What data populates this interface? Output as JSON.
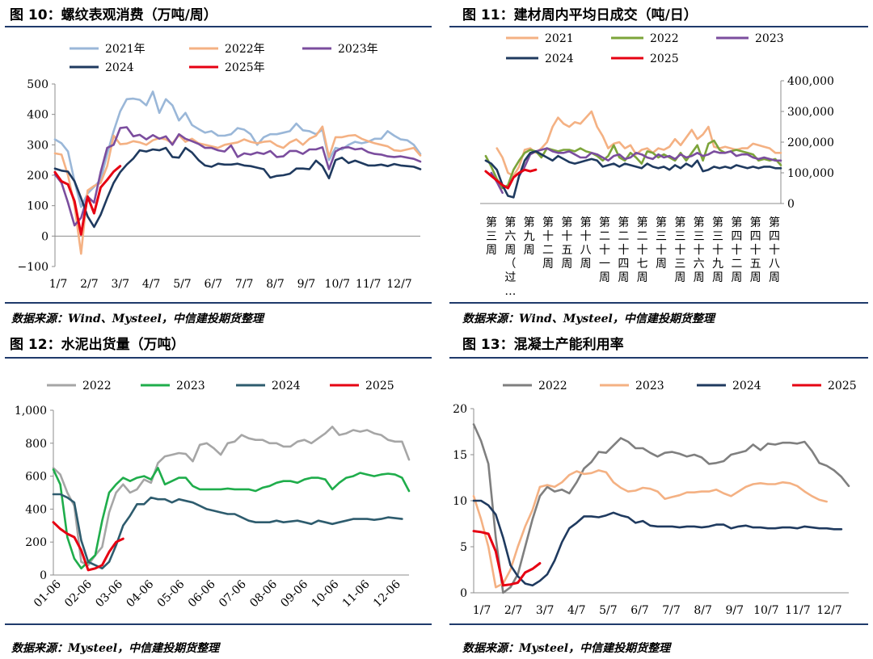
{
  "panels": {
    "p10": {
      "title": "图 10：螺纹表观消费（万吨/周）",
      "source": "数据来源：Wind、Mysteel，中信建投期货整理"
    },
    "p11": {
      "title": "图 11：建材周内平均日成交（吨/日）",
      "source": "数据来源：Wind、Mysteel，中信建投期货整理"
    },
    "p12": {
      "title": "图 12：水泥出货量（万吨）",
      "source": "数据来源：Mysteel，中信建投期货整理"
    },
    "p13": {
      "title": "图 13：混凝土产能利用率",
      "source": "数据来源：Mysteel，中信建投期货整理"
    }
  },
  "chart_data": [
    {
      "id": "p10",
      "type": "line",
      "title": "图 10：螺纹表观消费（万吨/周）",
      "xlabel": "",
      "ylabel": "",
      "x_ticks": [
        "1/7",
        "2/7",
        "3/7",
        "4/7",
        "5/7",
        "6/7",
        "7/7",
        "8/7",
        "9/7",
        "10/7",
        "11/7",
        "12/7"
      ],
      "ylim": [
        -100,
        500
      ],
      "y_ticks": [
        "−100",
        "0",
        "100",
        "200",
        "300",
        "400",
        "500"
      ],
      "y_tick_values": [
        -100,
        0,
        100,
        200,
        300,
        400,
        500
      ],
      "grid": false,
      "legend": "top",
      "series": [
        {
          "name": "2021年",
          "color": "#9ab7d8",
          "values": [
            318,
            305,
            278,
            180,
            96,
            140,
            162,
            185,
            270,
            345,
            410,
            450,
            452,
            448,
            430,
            475,
            405,
            450,
            430,
            380,
            405,
            365,
            352,
            340,
            345,
            330,
            330,
            335,
            355,
            350,
            335,
            300,
            325,
            335,
            335,
            340,
            345,
            370,
            348,
            345,
            335,
            350,
            250,
            290,
            285,
            300,
            310,
            305,
            310,
            320,
            320,
            345,
            330,
            318,
            315,
            300,
            270
          ]
        },
        {
          "name": "2022年",
          "color": "#f4b183",
          "values": [
            272,
            268,
            200,
            100,
            -58,
            150,
            165,
            175,
            230,
            330,
            302,
            304,
            312,
            308,
            300,
            315,
            322,
            318,
            305,
            332,
            310,
            320,
            305,
            300,
            295,
            290,
            300,
            304,
            308,
            318,
            310,
            305,
            310,
            312,
            298,
            290,
            308,
            318,
            300,
            320,
            330,
            360,
            260,
            325,
            325,
            330,
            332,
            320,
            312,
            305,
            300,
            295,
            282,
            280,
            285,
            290,
            265
          ]
        },
        {
          "name": "2023年",
          "color": "#7b4d9e",
          "values": [
            203,
            175,
            110,
            35,
            60,
            130,
            110,
            210,
            290,
            300,
            355,
            358,
            328,
            333,
            318,
            332,
            320,
            328,
            300,
            335,
            320,
            312,
            303,
            290,
            290,
            282,
            278,
            298,
            260,
            272,
            268,
            275,
            270,
            280,
            260,
            262,
            280,
            280,
            270,
            285,
            285,
            292,
            220,
            278,
            290,
            292,
            285,
            288,
            276,
            270,
            268,
            262,
            260,
            262,
            258,
            254,
            245
          ]
        },
        {
          "name": "2024",
          "color": "#1f3a5f",
          "values": [
            222,
            215,
            212,
            180,
            125,
            65,
            30,
            70,
            125,
            175,
            210,
            235,
            255,
            282,
            278,
            285,
            282,
            290,
            260,
            258,
            290,
            275,
            250,
            232,
            228,
            238,
            235,
            235,
            238,
            232,
            230,
            225,
            220,
            192,
            198,
            200,
            205,
            222,
            222,
            220,
            248,
            230,
            190,
            250,
            258,
            240,
            248,
            240,
            232,
            232,
            235,
            230,
            237,
            232,
            230,
            228,
            220
          ]
        },
        {
          "name": "2025年",
          "color": "#e60012",
          "values": [
            210,
            180,
            170,
            115,
            5,
            130,
            75,
            160,
            185,
            212,
            230
          ]
        }
      ]
    },
    {
      "id": "p11",
      "type": "line",
      "title": "图 11：建材周内平均日成交（吨/日）",
      "xlabel": "",
      "ylabel": "",
      "x_ticks": [
        "第三周",
        "第六周（过…",
        "第九周",
        "第十二周",
        "第十五周",
        "第十八周",
        "第二十一周",
        "第二十四周",
        "第二十七周",
        "第三十周",
        "第三十三周",
        "第三十六周",
        "第三十九周",
        "第四十二周",
        "第四十五周",
        "第四十八周"
      ],
      "ylim": [
        0,
        400000
      ],
      "y_ticks": [
        "0",
        "100,000",
        "200,000",
        "300,000",
        "400,000"
      ],
      "y_tick_values": [
        0,
        100000,
        200000,
        300000,
        400000
      ],
      "grid": false,
      "legend": "top",
      "series": [
        {
          "name": "2021",
          "color": "#f4b183",
          "values": [
            null,
            null,
            null,
            180000,
            150000,
            100000,
            90000,
            120000,
            175000,
            180000,
            165000,
            180000,
            200000,
            250000,
            280000,
            260000,
            250000,
            265000,
            260000,
            280000,
            300000,
            250000,
            220000,
            180000,
            195000,
            200000,
            180000,
            190000,
            160000,
            175000,
            180000,
            165000,
            180000,
            175000,
            185000,
            210000,
            190000,
            215000,
            240000,
            210000,
            225000,
            250000,
            185000,
            180000,
            185000,
            180000,
            175000,
            180000,
            180000,
            195000,
            190000,
            185000,
            180000,
            165000,
            165000
          ]
        },
        {
          "name": "2022",
          "color": "#7ca43a",
          "values": [
            null,
            155000,
            120000,
            80000,
            50000,
            60000,
            110000,
            140000,
            165000,
            175000,
            170000,
            150000,
            180000,
            175000,
            170000,
            175000,
            175000,
            170000,
            180000,
            170000,
            165000,
            155000,
            140000,
            155000,
            190000,
            150000,
            140000,
            165000,
            150000,
            130000,
            170000,
            165000,
            150000,
            160000,
            150000,
            140000,
            165000,
            140000,
            165000,
            190000,
            140000,
            195000,
            205000,
            175000,
            165000,
            170000,
            175000,
            170000,
            165000,
            160000,
            140000,
            145000,
            140000,
            145000,
            125000
          ]
        },
        {
          "name": "2023",
          "color": "#7b4d9e",
          "values": [
            null,
            null,
            100000,
            70000,
            35000,
            null,
            null,
            90000,
            120000,
            160000,
            170000,
            175000,
            180000,
            170000,
            165000,
            165000,
            170000,
            160000,
            150000,
            150000,
            165000,
            160000,
            150000,
            140000,
            155000,
            160000,
            145000,
            150000,
            165000,
            160000,
            150000,
            145000,
            160000,
            150000,
            155000,
            145000,
            160000,
            150000,
            155000,
            165000,
            155000,
            160000,
            170000,
            165000,
            165000,
            170000,
            155000,
            160000,
            160000,
            150000,
            145000,
            150000,
            145000,
            140000,
            140000
          ]
        },
        {
          "name": "2024",
          "color": "#1f3a5f",
          "values": [
            null,
            140000,
            130000,
            110000,
            60000,
            25000,
            20000,
            90000,
            140000,
            165000,
            170000,
            160000,
            150000,
            140000,
            155000,
            145000,
            135000,
            130000,
            135000,
            140000,
            145000,
            140000,
            120000,
            125000,
            130000,
            120000,
            130000,
            125000,
            120000,
            115000,
            130000,
            120000,
            115000,
            120000,
            110000,
            125000,
            115000,
            130000,
            120000,
            140000,
            105000,
            110000,
            120000,
            115000,
            120000,
            115000,
            125000,
            120000,
            115000,
            120000,
            115000,
            120000,
            120000,
            115000,
            115000
          ]
        },
        {
          "name": "2025",
          "color": "#e60012",
          "values": [
            null,
            105000,
            90000,
            75000,
            60000,
            50000,
            85000,
            100000,
            110000,
            105000,
            110000
          ]
        }
      ]
    },
    {
      "id": "p12",
      "type": "line",
      "title": "图 12：水泥出货量（万吨）",
      "xlabel": "",
      "ylabel": "",
      "x_ticks": [
        "01-06",
        "02-06",
        "03-06",
        "04-06",
        "05-06",
        "06-06",
        "07-06",
        "08-06",
        "09-06",
        "10-06",
        "11-06",
        "12-06"
      ],
      "ylim": [
        0,
        1000
      ],
      "y_ticks": [
        "0",
        "200",
        "400",
        "600",
        "800",
        "1,000"
      ],
      "y_tick_values": [
        0,
        200,
        400,
        600,
        800,
        1000
      ],
      "grid": false,
      "legend": "top",
      "series": [
        {
          "name": "2022",
          "color": "#a6a6a6",
          "values": [
            650,
            610,
            500,
            420,
            80,
            60,
            120,
            170,
            380,
            500,
            550,
            500,
            520,
            580,
            560,
            680,
            720,
            730,
            740,
            735,
            690,
            790,
            800,
            770,
            730,
            800,
            810,
            850,
            830,
            820,
            820,
            800,
            800,
            780,
            780,
            810,
            820,
            800,
            830,
            860,
            900,
            850,
            860,
            880,
            870,
            880,
            860,
            850,
            820,
            810,
            810,
            700
          ]
        },
        {
          "name": "2023",
          "color": "#1fad4b",
          "values": [
            640,
            550,
            230,
            100,
            40,
            80,
            120,
            330,
            500,
            550,
            590,
            570,
            590,
            600,
            580,
            650,
            550,
            570,
            590,
            590,
            540,
            520,
            520,
            520,
            520,
            525,
            520,
            520,
            520,
            510,
            530,
            540,
            560,
            570,
            570,
            560,
            580,
            590,
            590,
            580,
            520,
            560,
            590,
            600,
            620,
            610,
            600,
            610,
            615,
            610,
            590,
            510
          ]
        },
        {
          "name": "2024",
          "color": "#2e5c6e",
          "values": [
            490,
            490,
            470,
            440,
            210,
            80,
            60,
            40,
            80,
            180,
            300,
            360,
            430,
            430,
            470,
            460,
            460,
            440,
            460,
            450,
            440,
            420,
            400,
            390,
            380,
            370,
            370,
            350,
            330,
            320,
            320,
            320,
            330,
            320,
            325,
            330,
            320,
            310,
            330,
            320,
            310,
            320,
            330,
            340,
            340,
            340,
            335,
            340,
            350,
            345,
            340
          ]
        },
        {
          "name": "2025",
          "color": "#e60012",
          "values": [
            320,
            280,
            250,
            230,
            150,
            30,
            40,
            60,
            140,
            200,
            220
          ]
        }
      ]
    },
    {
      "id": "p13",
      "type": "line",
      "title": "图 13：混凝土产能利用率",
      "xlabel": "",
      "ylabel": "",
      "x_ticks": [
        "1/7",
        "2/7",
        "3/7",
        "4/7",
        "5/7",
        "6/7",
        "7/7",
        "8/7",
        "9/7",
        "10/7",
        "11/7",
        "12/7"
      ],
      "ylim": [
        0,
        20
      ],
      "y_ticks": [
        "0",
        "5",
        "10",
        "15",
        "20"
      ],
      "y_tick_values": [
        0,
        5,
        10,
        15,
        20
      ],
      "grid": false,
      "legend": "top",
      "series": [
        {
          "name": "2022",
          "color": "#7f7f7f",
          "values": [
            18.3,
            16.5,
            14,
            6,
            0,
            0.6,
            2,
            5,
            8,
            10.5,
            11.5,
            11,
            11.2,
            10.8,
            12,
            13.5,
            14.2,
            15.3,
            15.2,
            16,
            16.8,
            16.4,
            15.7,
            15.7,
            15.2,
            14.8,
            15.2,
            15.3,
            15.1,
            14.8,
            15,
            14.7,
            14,
            14.1,
            14.3,
            15,
            15.2,
            15.4,
            16.1,
            15.5,
            16.2,
            16.1,
            16.3,
            16.3,
            16.2,
            16.4,
            15.4,
            14.1,
            13.8,
            13.3,
            12.6,
            11.6
          ]
        },
        {
          "name": "2023",
          "color": "#f4b183",
          "values": [
            10.5,
            8,
            5,
            0.6,
            1,
            2.5,
            5,
            7.2,
            9,
            11.5,
            11.7,
            11.5,
            12,
            12.8,
            13.2,
            12.9,
            13,
            13.3,
            13.1,
            12,
            11.4,
            11,
            11.1,
            11.4,
            11.3,
            11,
            10.2,
            10.4,
            10.6,
            10.9,
            10.9,
            11,
            11,
            11.2,
            10.8,
            10.5,
            11,
            11.5,
            11.8,
            11.9,
            11.8,
            11.8,
            12,
            11.9,
            11.6,
            11,
            10.5,
            10.1,
            9.9
          ]
        },
        {
          "name": "2024",
          "color": "#1f3a5f",
          "values": [
            10,
            10,
            9.5,
            8.5,
            6,
            3,
            1.8,
            1,
            0.8,
            1.3,
            2,
            3.5,
            5.5,
            7,
            7.6,
            8.3,
            8.3,
            8.2,
            8.4,
            8.7,
            8.4,
            8.2,
            7.6,
            7.8,
            7.3,
            7.2,
            7.2,
            7.2,
            7.1,
            7.2,
            7.2,
            7.1,
            7.2,
            7.4,
            7.4,
            7,
            7.2,
            7.3,
            7.1,
            7.1,
            7,
            7,
            7.1,
            7.1,
            7,
            7.2,
            7.1,
            7,
            7,
            6.9,
            6.9
          ]
        },
        {
          "name": "2025",
          "color": "#e60012",
          "values": [
            6.7,
            6.6,
            6.4,
            4.5,
            0.8,
            0.9,
            1.1,
            2.2,
            2.6,
            3.2
          ]
        }
      ]
    }
  ]
}
